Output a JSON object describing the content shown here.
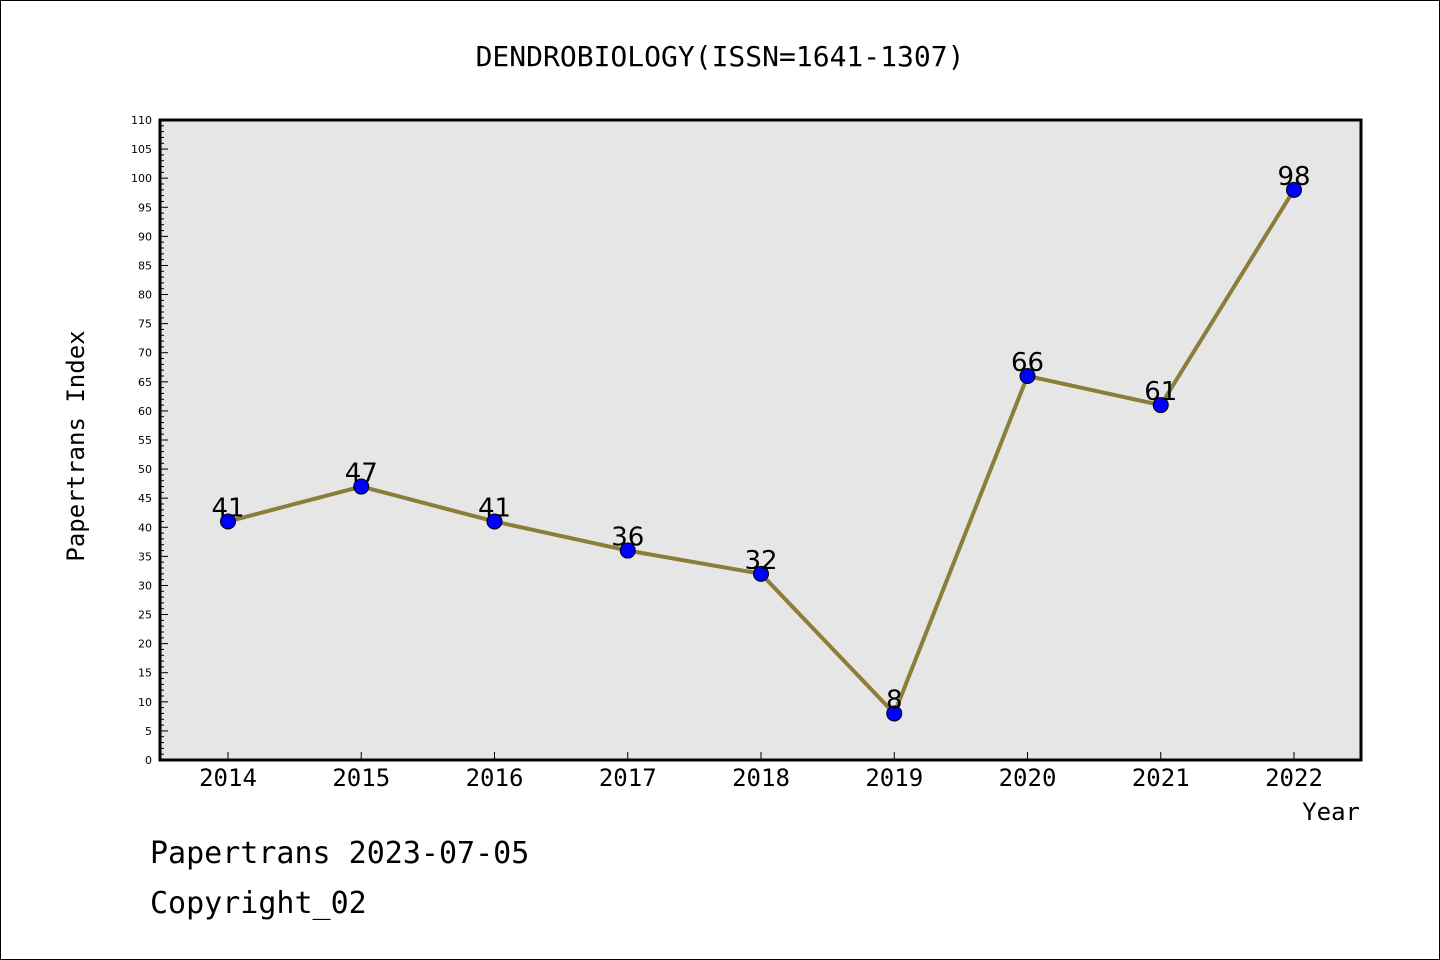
{
  "chart_data": {
    "type": "line",
    "title": "DENDROBIOLOGY(ISSN=1641-1307)",
    "xlabel": "Year",
    "ylabel": "Papertrans Index",
    "categories": [
      "2014",
      "2015",
      "2016",
      "2017",
      "2018",
      "2019",
      "2020",
      "2021",
      "2022"
    ],
    "values": [
      41,
      47,
      41,
      36,
      32,
      8,
      66,
      61,
      98
    ],
    "data_labels": [
      "41",
      "47",
      "41",
      "36",
      "32",
      "8",
      "66",
      "61",
      "98"
    ],
    "ylim": [
      0,
      110
    ],
    "y_major_step": 5,
    "y_minor_step": 1,
    "grid": false,
    "line_color": "#8B7D3A",
    "marker_color": "#0000FF",
    "plot_background": "#E6E6E6"
  },
  "footer": {
    "date_line": "Papertrans 2023-07-05",
    "copyright_line": "Copyright_02"
  }
}
